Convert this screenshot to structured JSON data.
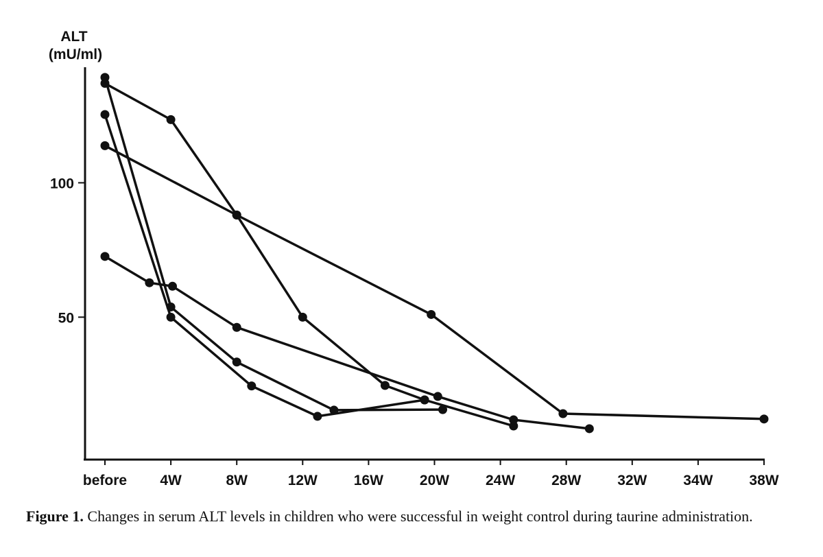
{
  "chart_data": {
    "type": "line",
    "title": "",
    "ylabel": [
      "ALT",
      "(mU/ml)"
    ],
    "xlabel": "",
    "x_ticks": [
      {
        "label": "before",
        "value": 0
      },
      {
        "label": "4W",
        "value": 4
      },
      {
        "label": "8W",
        "value": 8
      },
      {
        "label": "12W",
        "value": 12
      },
      {
        "label": "16W",
        "value": 16
      },
      {
        "label": "20W",
        "value": 20
      },
      {
        "label": "24W",
        "value": 24
      },
      {
        "label": "28W",
        "value": 28
      },
      {
        "label": "32W",
        "value": 32
      },
      {
        "label": "34W",
        "value": 34
      },
      {
        "label": "38W",
        "value": 38
      }
    ],
    "y_ticks": [
      50,
      100
    ],
    "ylim": [
      -3,
      143
    ],
    "grid": false,
    "marker": "filled-circle",
    "line_color": "#111111",
    "series": [
      {
        "points": [
          [
            0,
            137
          ],
          [
            4,
            123.5
          ],
          [
            8,
            88
          ],
          [
            12,
            50
          ],
          [
            17,
            24.6
          ],
          [
            19.4,
            19.2
          ],
          [
            24.8,
            9.5
          ]
        ]
      },
      {
        "points": [
          [
            0,
            139.2
          ],
          [
            4,
            53.8
          ],
          [
            8,
            33.3
          ],
          [
            13.9,
            15.4
          ],
          [
            20.5,
            15.6
          ]
        ]
      },
      {
        "points": [
          [
            0,
            125.4
          ],
          [
            4,
            50
          ],
          [
            8.9,
            24.4
          ],
          [
            12.9,
            13.1
          ],
          [
            19.4,
            19.2
          ]
        ]
      },
      {
        "points": [
          [
            0,
            113.8
          ],
          [
            8,
            88
          ],
          [
            19.8,
            51
          ],
          [
            27.8,
            14.1
          ],
          [
            38,
            12.1
          ]
        ]
      },
      {
        "points": [
          [
            0,
            72.6
          ],
          [
            2.7,
            62.8
          ],
          [
            4.1,
            61.5
          ],
          [
            8,
            46.2
          ],
          [
            20.2,
            20.5
          ],
          [
            24.8,
            11.8
          ],
          [
            29.4,
            8.5
          ]
        ]
      }
    ]
  },
  "caption": {
    "label": "Figure 1.",
    "text": " Changes in serum ALT levels in children who were successful in weight control during taurine administration."
  }
}
